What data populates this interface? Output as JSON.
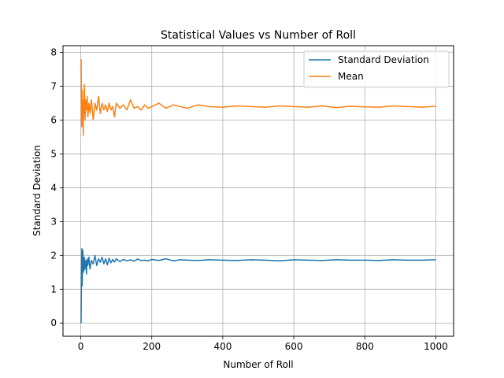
{
  "chart_data": {
    "type": "line",
    "title": "Statistical Values vs Number of Roll",
    "xlabel": "Number of Roll",
    "ylabel": "Standard Deviation",
    "xlim": [
      -50,
      1050
    ],
    "ylim": [
      -0.39,
      8.2
    ],
    "xticks": [
      0,
      200,
      400,
      600,
      800,
      1000
    ],
    "yticks": [
      0,
      1,
      2,
      3,
      4,
      5,
      6,
      7,
      8
    ],
    "grid": true,
    "legend_position": "top-right",
    "series": [
      {
        "name": "Standard Deviation",
        "color": "#1f77b4",
        "x": [
          1,
          2,
          3,
          4,
          5,
          6,
          7,
          8,
          9,
          10,
          12,
          14,
          16,
          18,
          20,
          23,
          26,
          30,
          35,
          40,
          45,
          50,
          55,
          60,
          65,
          70,
          75,
          80,
          85,
          90,
          95,
          100,
          110,
          120,
          130,
          140,
          150,
          160,
          170,
          180,
          190,
          200,
          220,
          240,
          260,
          280,
          300,
          330,
          360,
          400,
          440,
          480,
          520,
          560,
          600,
          640,
          680,
          720,
          760,
          800,
          840,
          880,
          920,
          960,
          1000
        ],
        "values": [
          0.0,
          1.41,
          2.2,
          1.1,
          1.6,
          2.15,
          1.5,
          1.8,
          1.55,
          1.95,
          1.6,
          1.85,
          1.45,
          1.9,
          1.7,
          1.95,
          1.6,
          1.85,
          1.75,
          2.0,
          1.7,
          1.9,
          1.8,
          1.95,
          1.75,
          1.9,
          1.72,
          1.92,
          1.78,
          1.88,
          1.8,
          1.9,
          1.82,
          1.88,
          1.84,
          1.87,
          1.83,
          1.89,
          1.85,
          1.86,
          1.84,
          1.88,
          1.85,
          1.9,
          1.84,
          1.87,
          1.86,
          1.85,
          1.87,
          1.86,
          1.85,
          1.87,
          1.86,
          1.84,
          1.87,
          1.86,
          1.85,
          1.87,
          1.86,
          1.86,
          1.85,
          1.87,
          1.86,
          1.86,
          1.87
        ]
      },
      {
        "name": "Mean",
        "color": "#ff7f0e",
        "x": [
          1,
          2,
          3,
          4,
          5,
          6,
          7,
          8,
          9,
          10,
          12,
          14,
          16,
          18,
          20,
          23,
          26,
          30,
          35,
          40,
          45,
          50,
          55,
          60,
          65,
          70,
          75,
          80,
          85,
          90,
          95,
          100,
          110,
          120,
          130,
          140,
          150,
          160,
          170,
          180,
          190,
          200,
          220,
          240,
          260,
          280,
          300,
          330,
          360,
          400,
          440,
          480,
          520,
          560,
          600,
          640,
          680,
          720,
          760,
          800,
          840,
          880,
          920,
          960,
          1000
        ],
        "values": [
          7.8,
          6.0,
          5.8,
          6.9,
          6.3,
          6.6,
          5.55,
          6.5,
          6.2,
          7.05,
          6.0,
          6.6,
          6.3,
          6.7,
          6.1,
          6.5,
          6.2,
          6.6,
          6.0,
          6.5,
          6.3,
          6.7,
          6.2,
          6.5,
          6.3,
          6.45,
          6.25,
          6.5,
          6.3,
          6.4,
          6.1,
          6.5,
          6.35,
          6.45,
          6.3,
          6.6,
          6.35,
          6.4,
          6.3,
          6.45,
          6.35,
          6.4,
          6.5,
          6.35,
          6.45,
          6.4,
          6.35,
          6.45,
          6.4,
          6.38,
          6.42,
          6.4,
          6.38,
          6.42,
          6.4,
          6.38,
          6.42,
          6.37,
          6.41,
          6.39,
          6.38,
          6.42,
          6.4,
          6.38,
          6.41
        ]
      }
    ]
  }
}
